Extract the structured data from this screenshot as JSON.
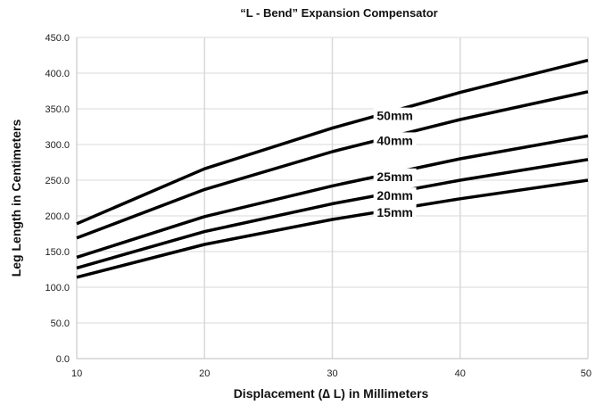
{
  "chart_data": {
    "type": "line",
    "title": "“L - Bend” Expansion Compensator",
    "xlabel": "Displacement (∆ L) in Millimeters",
    "ylabel": "Leg Length in Centimeters",
    "xlim": [
      10,
      50
    ],
    "ylim": [
      0,
      450
    ],
    "x_ticks": [
      10,
      20,
      30,
      40,
      50
    ],
    "y_ticks": [
      0,
      50,
      100,
      150,
      200,
      250,
      300,
      350,
      400,
      450
    ],
    "y_tick_labels": [
      "0.0",
      "50.0",
      "100.0",
      "150.0",
      "200.0",
      "250.0",
      "300.0",
      "350.0",
      "400.0",
      "450.0"
    ],
    "grid": true,
    "legend": "inline-labels",
    "line_color": "#000000",
    "grid_color": "#d9d9d9",
    "x": [
      10,
      20,
      30,
      40,
      50
    ],
    "series": [
      {
        "name": "50mm",
        "values": [
          189,
          266,
          323,
          373,
          418
        ]
      },
      {
        "name": "40mm",
        "values": [
          169,
          237,
          290,
          335,
          374
        ]
      },
      {
        "name": "25mm",
        "values": [
          142,
          199,
          242,
          280,
          312
        ]
      },
      {
        "name": "20mm",
        "values": [
          127,
          178,
          217,
          250,
          279
        ]
      },
      {
        "name": "15mm",
        "values": [
          114,
          160,
          195,
          224,
          250
        ]
      }
    ],
    "label_at_x": 33.5
  }
}
